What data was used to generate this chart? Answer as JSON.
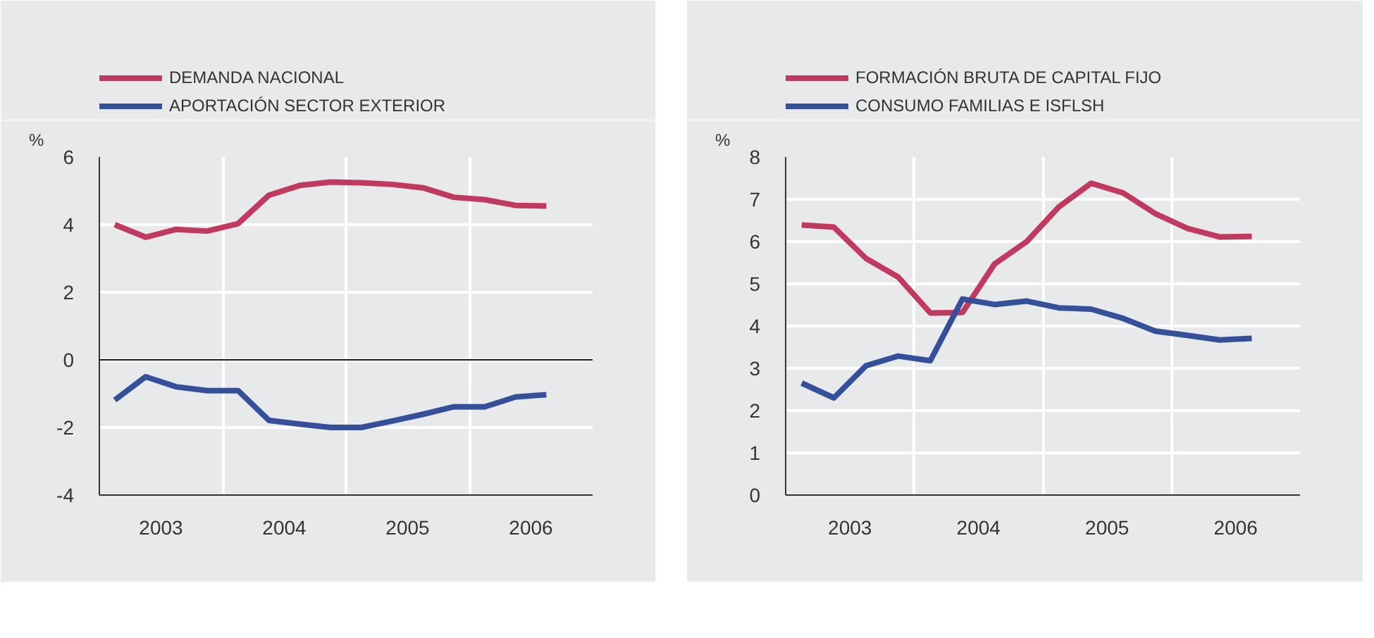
{
  "chart_data": [
    {
      "type": "line",
      "ylabel": "%",
      "legend": "top left",
      "grid": true,
      "line_style": "solid",
      "x": [
        2003.125,
        2003.375,
        2003.625,
        2003.875,
        2004.125,
        2004.375,
        2004.625,
        2004.875,
        2005.125,
        2005.375,
        2005.625,
        2005.875,
        2006.125,
        2006.375,
        2006.625
      ],
      "xlim": [
        2003,
        2007
      ],
      "xticks": [
        {
          "value": 2003.5,
          "label": "2003"
        },
        {
          "value": 2004,
          "label": null
        },
        {
          "value": 2004.5,
          "label": "2004"
        },
        {
          "value": 2005,
          "label": null
        },
        {
          "value": 2005.5,
          "label": "2005"
        },
        {
          "value": 2006,
          "label": null
        },
        {
          "value": 2006.5,
          "label": "2006"
        }
      ],
      "ylim": [
        -4,
        6
      ],
      "yticks": [
        -4,
        -2,
        0,
        2,
        4,
        6
      ],
      "ref_lines": [
        {
          "axis": "y",
          "value": 0,
          "color": "#1a1a1a"
        }
      ],
      "series": [
        {
          "name": "DEMANDA NACIONAL",
          "color": "#c0395e",
          "values": [
            4.0,
            3.63,
            3.86,
            3.81,
            4.03,
            4.87,
            5.16,
            5.26,
            5.24,
            5.19,
            5.09,
            4.81,
            4.74,
            4.57,
            4.55
          ]
        },
        {
          "name": "APORTACIÓN SECTOR EXTERIOR",
          "color": "#35509a",
          "values": [
            -1.19,
            -0.5,
            -0.8,
            -0.91,
            -0.91,
            -1.79,
            -1.9,
            -2.0,
            -2.0,
            -1.81,
            -1.61,
            -1.39,
            -1.39,
            -1.1,
            -1.03
          ]
        }
      ]
    },
    {
      "type": "line",
      "ylabel": "%",
      "legend": "top left",
      "grid": true,
      "line_style": "solid",
      "x": [
        2003.125,
        2003.375,
        2003.625,
        2003.875,
        2004.125,
        2004.375,
        2004.625,
        2004.875,
        2005.125,
        2005.375,
        2005.625,
        2005.875,
        2006.125,
        2006.375,
        2006.625
      ],
      "xlim": [
        2003,
        2007
      ],
      "xticks": [
        {
          "value": 2003.5,
          "label": "2003"
        },
        {
          "value": 2004,
          "label": null
        },
        {
          "value": 2004.5,
          "label": "2004"
        },
        {
          "value": 2005,
          "label": null
        },
        {
          "value": 2005.5,
          "label": "2005"
        },
        {
          "value": 2006,
          "label": null
        },
        {
          "value": 2006.5,
          "label": "2006"
        }
      ],
      "ylim": [
        0,
        8
      ],
      "yticks": [
        0,
        1,
        2,
        3,
        4,
        5,
        6,
        7,
        8
      ],
      "series": [
        {
          "name": "FORMACIÓN BRUTA DE CAPITAL FIJO",
          "color": "#c0395e",
          "values": [
            6.39,
            6.34,
            5.6,
            5.16,
            4.31,
            4.32,
            5.47,
            6.0,
            6.82,
            7.38,
            7.15,
            6.66,
            6.31,
            6.11,
            6.12
          ]
        },
        {
          "name": "CONSUMO FAMILIAS E ISFLSH",
          "color": "#35509a",
          "values": [
            2.65,
            2.3,
            3.06,
            3.29,
            3.18,
            4.64,
            4.51,
            4.59,
            4.43,
            4.4,
            4.18,
            3.88,
            3.78,
            3.67,
            3.71
          ]
        }
      ]
    }
  ]
}
